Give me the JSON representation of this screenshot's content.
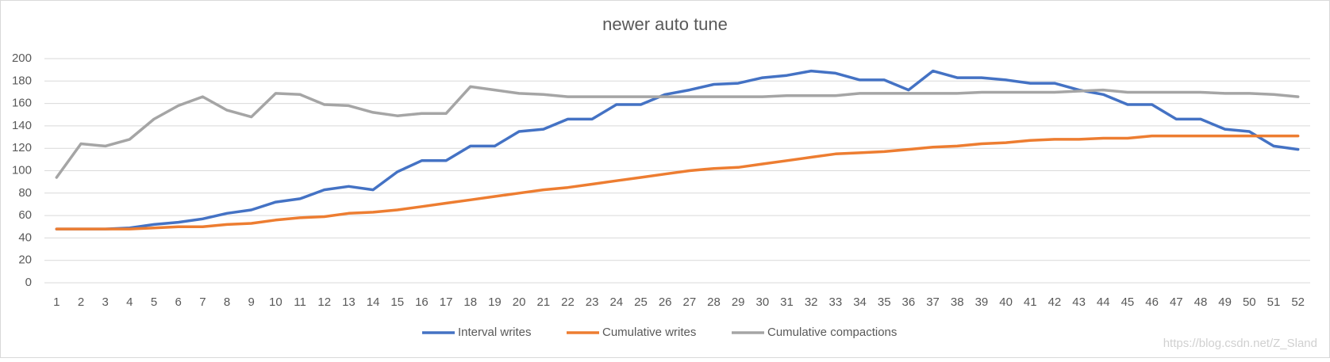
{
  "chart_data": {
    "type": "line",
    "title": "newer auto tune",
    "categories": [
      "1",
      "2",
      "3",
      "4",
      "5",
      "6",
      "7",
      "8",
      "9",
      "10",
      "11",
      "12",
      "13",
      "14",
      "15",
      "16",
      "17",
      "18",
      "19",
      "20",
      "21",
      "22",
      "23",
      "24",
      "25",
      "26",
      "27",
      "28",
      "29",
      "30",
      "31",
      "32",
      "33",
      "34",
      "35",
      "36",
      "37",
      "38",
      "39",
      "40",
      "41",
      "42",
      "43",
      "44",
      "45",
      "46",
      "47",
      "48",
      "49",
      "50",
      "51",
      "52"
    ],
    "series": [
      {
        "name": "Interval writes",
        "color": "#4472c4",
        "values": [
          48,
          48,
          48,
          49,
          52,
          54,
          57,
          62,
          65,
          72,
          75,
          83,
          86,
          83,
          99,
          109,
          109,
          122,
          122,
          135,
          137,
          146,
          146,
          159,
          159,
          168,
          172,
          177,
          178,
          183,
          185,
          189,
          187,
          181,
          181,
          172,
          189,
          183,
          183,
          181,
          178,
          178,
          172,
          168,
          159,
          159,
          146,
          146,
          137,
          135,
          122,
          119
        ]
      },
      {
        "name": "Cumulative writes",
        "color": "#ed7d31",
        "values": [
          48,
          48,
          48,
          48,
          49,
          50,
          50,
          52,
          53,
          56,
          58,
          59,
          62,
          63,
          65,
          68,
          71,
          74,
          77,
          80,
          83,
          85,
          88,
          91,
          94,
          97,
          100,
          102,
          103,
          106,
          109,
          112,
          115,
          116,
          117,
          119,
          121,
          122,
          124,
          125,
          127,
          128,
          128,
          129,
          129,
          131,
          131,
          131,
          131,
          131,
          131,
          131
        ]
      },
      {
        "name": "Cumulative compactions",
        "color": "#a5a5a5",
        "values": [
          94,
          124,
          122,
          128,
          146,
          158,
          166,
          154,
          148,
          169,
          168,
          159,
          158,
          152,
          149,
          151,
          151,
          175,
          172,
          169,
          168,
          166,
          166,
          166,
          166,
          166,
          166,
          166,
          166,
          166,
          167,
          167,
          167,
          169,
          169,
          169,
          169,
          169,
          170,
          170,
          170,
          170,
          171,
          172,
          170,
          170,
          170,
          170,
          169,
          169,
          168,
          166
        ]
      }
    ],
    "ylim": [
      0,
      200
    ],
    "yticks": [
      0,
      20,
      40,
      60,
      80,
      100,
      120,
      140,
      160,
      180,
      200
    ],
    "grid": true,
    "legend": "bottom",
    "annotation": "https://blog.csdn.net/Z_Sland"
  }
}
